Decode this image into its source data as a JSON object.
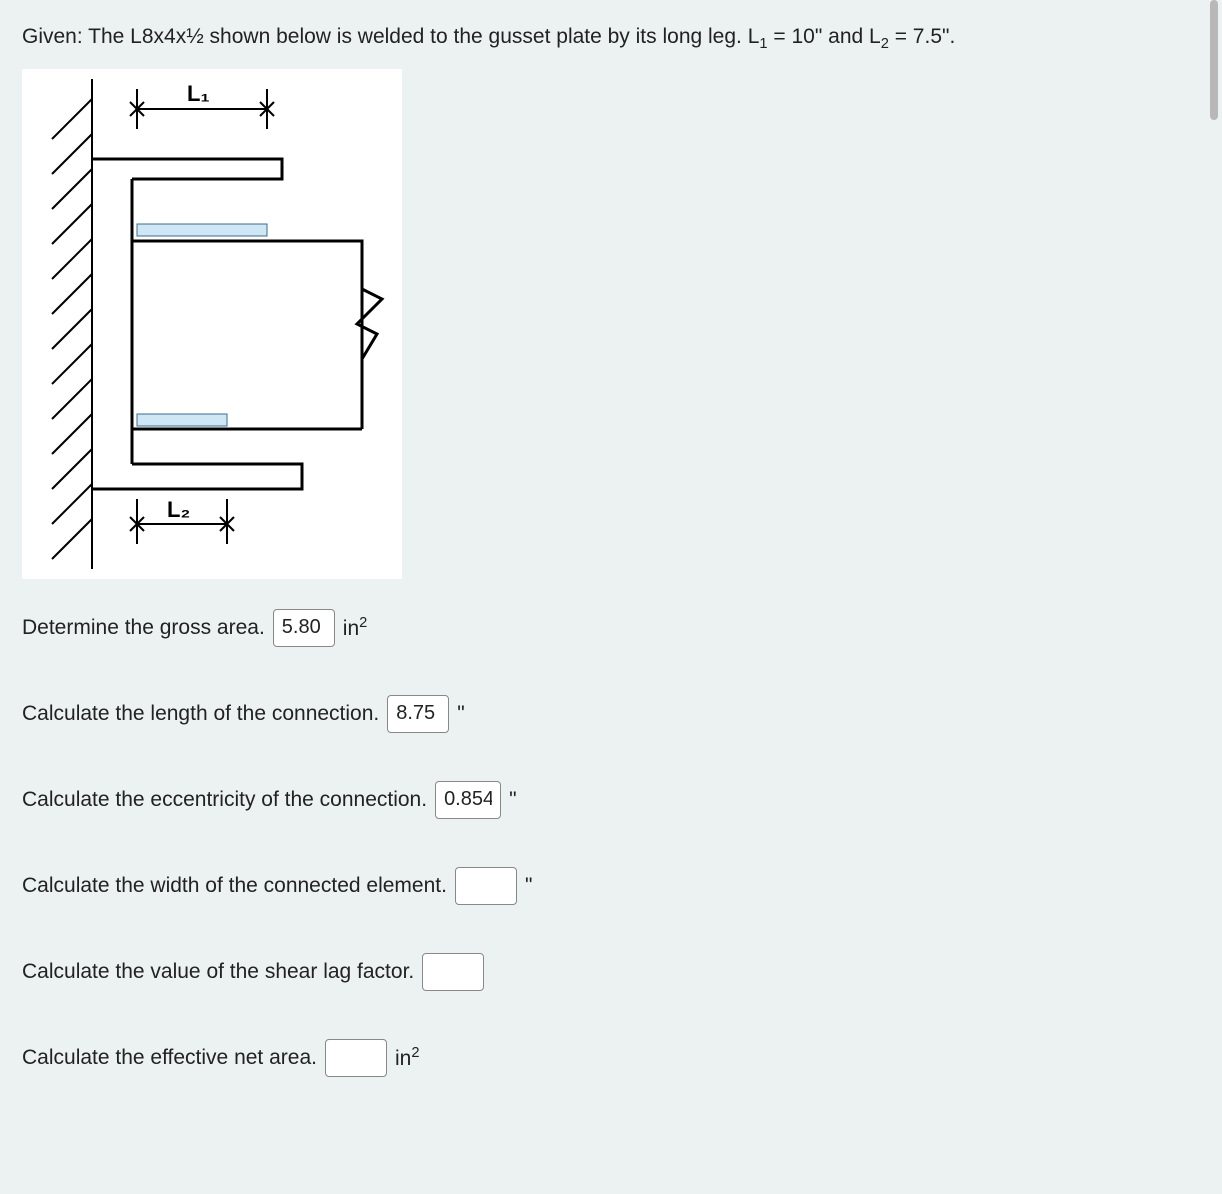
{
  "problem": {
    "text_before_sub1": "Given: The L8x4x½ shown below is welded to the gusset plate by its long leg. L",
    "sub1": "1",
    "text_after_sub1": " = 10\" and L",
    "sub2": "2",
    "text_after_sub2": " = 7.5\"."
  },
  "diagram": {
    "labels": {
      "L1": "L₁",
      "L2": "L₂"
    },
    "colors": {
      "background": "#ffffff",
      "stroke": "#000000",
      "weld_fill": "#cfe7f5",
      "hatch": "#000000"
    },
    "stroke_width_main": 3,
    "stroke_width_thin": 2
  },
  "questions": [
    {
      "id": "gross-area",
      "label": "Determine the gross area.",
      "value": "5.80",
      "input_width": 62,
      "unit_html": "in<sup>2</sup>"
    },
    {
      "id": "connection-length",
      "label": "Calculate the length of the connection.",
      "value": "8.75",
      "input_width": 62,
      "unit_html": "\""
    },
    {
      "id": "eccentricity",
      "label": "Calculate the eccentricity of the connection.",
      "value": "0.854",
      "input_width": 66,
      "unit_html": "\""
    },
    {
      "id": "connected-width",
      "label": "Calculate the width of the connected element.",
      "value": "",
      "input_width": 62,
      "unit_html": "\""
    },
    {
      "id": "shear-lag",
      "label": "Calculate the value of the shear lag factor.",
      "value": "",
      "input_width": 62,
      "unit_html": ""
    },
    {
      "id": "effective-net-area",
      "label": "Calculate the effective net area.",
      "value": "",
      "input_width": 62,
      "unit_html": "in<sup>2</sup>"
    }
  ]
}
